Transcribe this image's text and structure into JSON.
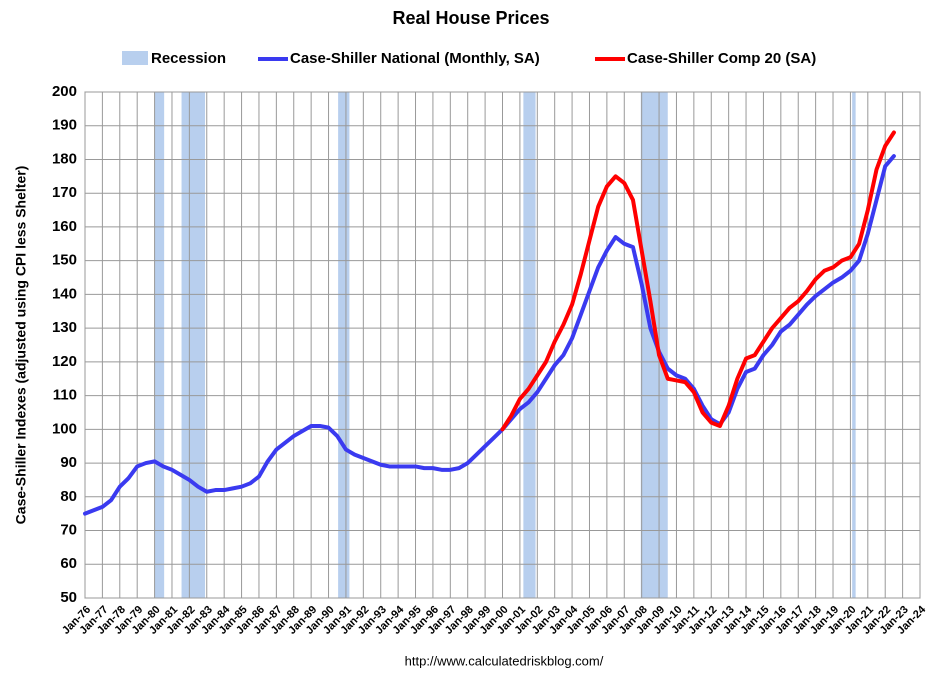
{
  "chart_data": {
    "type": "line",
    "title": "Real House Prices",
    "y_label": "Case-Shiller Indexes (adjusted using CPI less Shelter)",
    "source": "http://www.calculatedriskblog.com/",
    "recession_label": "Recession",
    "recession_color": "#b8cfee",
    "recessions": [
      {
        "start": 1980.0,
        "end": 1980.55
      },
      {
        "start": 1981.55,
        "end": 1982.9
      },
      {
        "start": 1990.55,
        "end": 1991.2
      },
      {
        "start": 2001.2,
        "end": 2001.9
      },
      {
        "start": 2007.95,
        "end": 2009.5
      },
      {
        "start": 2020.1,
        "end": 2020.3
      }
    ],
    "xlim": [
      1976,
      2024
    ],
    "categories": [
      "Jan-76",
      null,
      "Jan-77",
      null,
      "Jan-78",
      null,
      "Jan-79",
      null,
      "Jan-80",
      null,
      "Jan-81",
      null,
      "Jan-82",
      null,
      "Jan-83",
      null,
      "Jan-84",
      null,
      "Jan-85",
      null,
      "Jan-86",
      null,
      "Jan-87",
      null,
      "Jan-88",
      null,
      "Jan-89",
      null,
      "Jan-90",
      null,
      "Jan-91",
      null,
      "Jan-92",
      null,
      "Jan-93",
      null,
      "Jan-94",
      null,
      "Jan-95",
      null,
      "Jan-96",
      null,
      "Jan-97",
      null,
      "Jan-98",
      null,
      "Jan-99",
      null,
      "Jan-00",
      null,
      "Jan-01",
      null,
      "Jan-02",
      null,
      "Jan-03",
      null,
      "Jan-04",
      null,
      "Jan-05",
      null,
      "Jan-06",
      null,
      "Jan-07",
      null,
      "Jan-08",
      null,
      "Jan-09",
      null,
      "Jan-10",
      null,
      "Jan-11",
      null,
      "Jan-12",
      null,
      "Jan-13",
      null,
      "Jan-14",
      null,
      "Jan-15",
      null,
      "Jan-16",
      null,
      "Jan-17",
      null,
      "Jan-18",
      null,
      "Jan-19",
      null,
      "Jan-20",
      null,
      "Jan-21",
      null,
      "Jan-22",
      null,
      "Jan-23",
      null,
      "Jan-24"
    ],
    "series": [
      {
        "name": "Case-Shiller National (Monthly, SA)",
        "color": "#3a3af0",
        "values": [
          75,
          76,
          77,
          79,
          83,
          85.5,
          89,
          90,
          90.5,
          89,
          88,
          86.5,
          85,
          83,
          81.5,
          82,
          82,
          82.5,
          83,
          84,
          86,
          90.5,
          94,
          96,
          98,
          99.5,
          101,
          101,
          100.5,
          98,
          94,
          92.5,
          91.5,
          90.5,
          89.5,
          89,
          89,
          89,
          89,
          88.5,
          88.5,
          88,
          88,
          88.5,
          90,
          92.5,
          95,
          97.5,
          100,
          103,
          106,
          108,
          111,
          115,
          119,
          122,
          127,
          134,
          141,
          148,
          153,
          157,
          155,
          154,
          143,
          130,
          123,
          118,
          116,
          115,
          112,
          107,
          103,
          101.5,
          105,
          112,
          117,
          118,
          122,
          125,
          129,
          131,
          134,
          137,
          139.5,
          141.5,
          143.5,
          145,
          147,
          150,
          158,
          168,
          178,
          181,
          null,
          null,
          null
        ]
      },
      {
        "name": "Case-Shiller Comp 20  (SA)",
        "color": "#ff0000",
        "values": [
          null,
          null,
          null,
          null,
          null,
          null,
          null,
          null,
          null,
          null,
          null,
          null,
          null,
          null,
          null,
          null,
          null,
          null,
          null,
          null,
          null,
          null,
          null,
          null,
          null,
          null,
          null,
          null,
          null,
          null,
          null,
          null,
          null,
          null,
          null,
          null,
          null,
          null,
          null,
          null,
          null,
          null,
          null,
          null,
          null,
          null,
          null,
          null,
          100,
          104,
          109,
          112,
          116,
          120,
          126,
          131,
          137,
          146,
          156,
          166,
          172,
          175,
          173,
          168,
          153,
          138,
          122,
          115,
          114.5,
          114,
          111,
          105,
          102,
          101,
          107,
          115,
          121,
          122,
          126,
          130,
          133,
          136,
          138,
          141,
          144.5,
          147,
          148,
          150,
          151,
          155,
          165,
          177,
          184,
          188,
          null,
          null,
          null
        ]
      }
    ],
    "ylim": [
      50,
      200
    ],
    "yticks": [
      50,
      60,
      70,
      80,
      90,
      100,
      110,
      120,
      130,
      140,
      150,
      160,
      170,
      180,
      190,
      200
    ],
    "grid": true
  }
}
